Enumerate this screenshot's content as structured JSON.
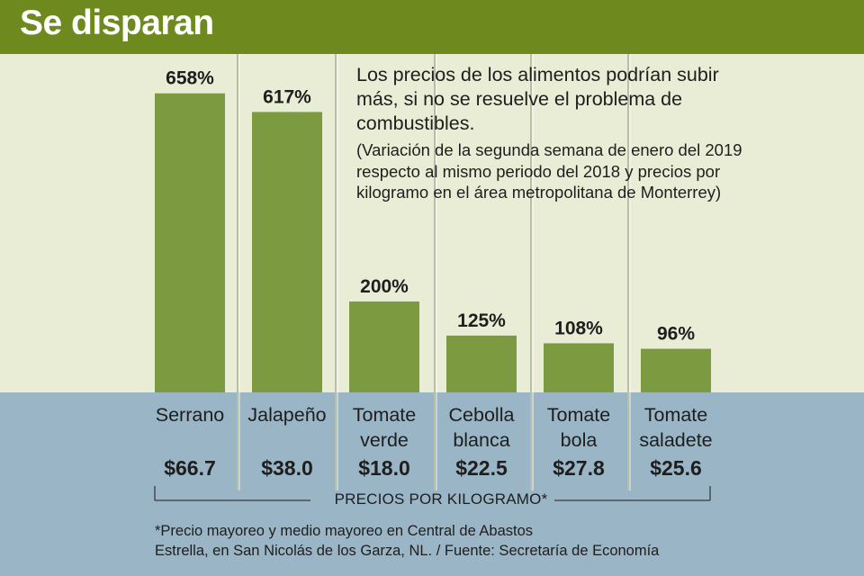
{
  "header": {
    "title": "Se disparan"
  },
  "description": {
    "main": "Los precios de los alimentos podrían subir más, si no se resuelve el problema de combustibles.",
    "note": "(Variación de la segunda semana de enero del 2019 respecto al mismo periodo del 2018 y precios por kilogramo en el área metropolitana de Monterrey)"
  },
  "colors": {
    "header": "#6e8a1e",
    "bar": "#7c9b41",
    "top_background": "#eaedd6",
    "bottom_background": "#9ab5c6"
  },
  "chart_data": {
    "type": "bar",
    "title": "Se disparan",
    "categories": [
      [
        "Serrano"
      ],
      [
        "Jalapeño"
      ],
      [
        "Tomate",
        "verde"
      ],
      [
        "Cebolla",
        "blanca"
      ],
      [
        "Tomate",
        "bola"
      ],
      [
        "Tomate",
        "saladete"
      ]
    ],
    "values": [
      658,
      617,
      200,
      125,
      108,
      96
    ],
    "value_labels": [
      "658%",
      "617%",
      "200%",
      "125%",
      "108%",
      "96%"
    ],
    "prices": [
      "$66.7",
      "$38.0",
      "$18.0",
      "$22.5",
      "$27.8",
      "$25.6"
    ],
    "price_axis_label": "PRECIOS POR KILOGRAMO*"
  },
  "footnote": {
    "line1": "*Precio mayoreo y medio mayoreo en Central de Abastos",
    "line2": "Estrella, en San Nicolás de los Garza, NL. / Fuente: Secretaría de Economía"
  }
}
